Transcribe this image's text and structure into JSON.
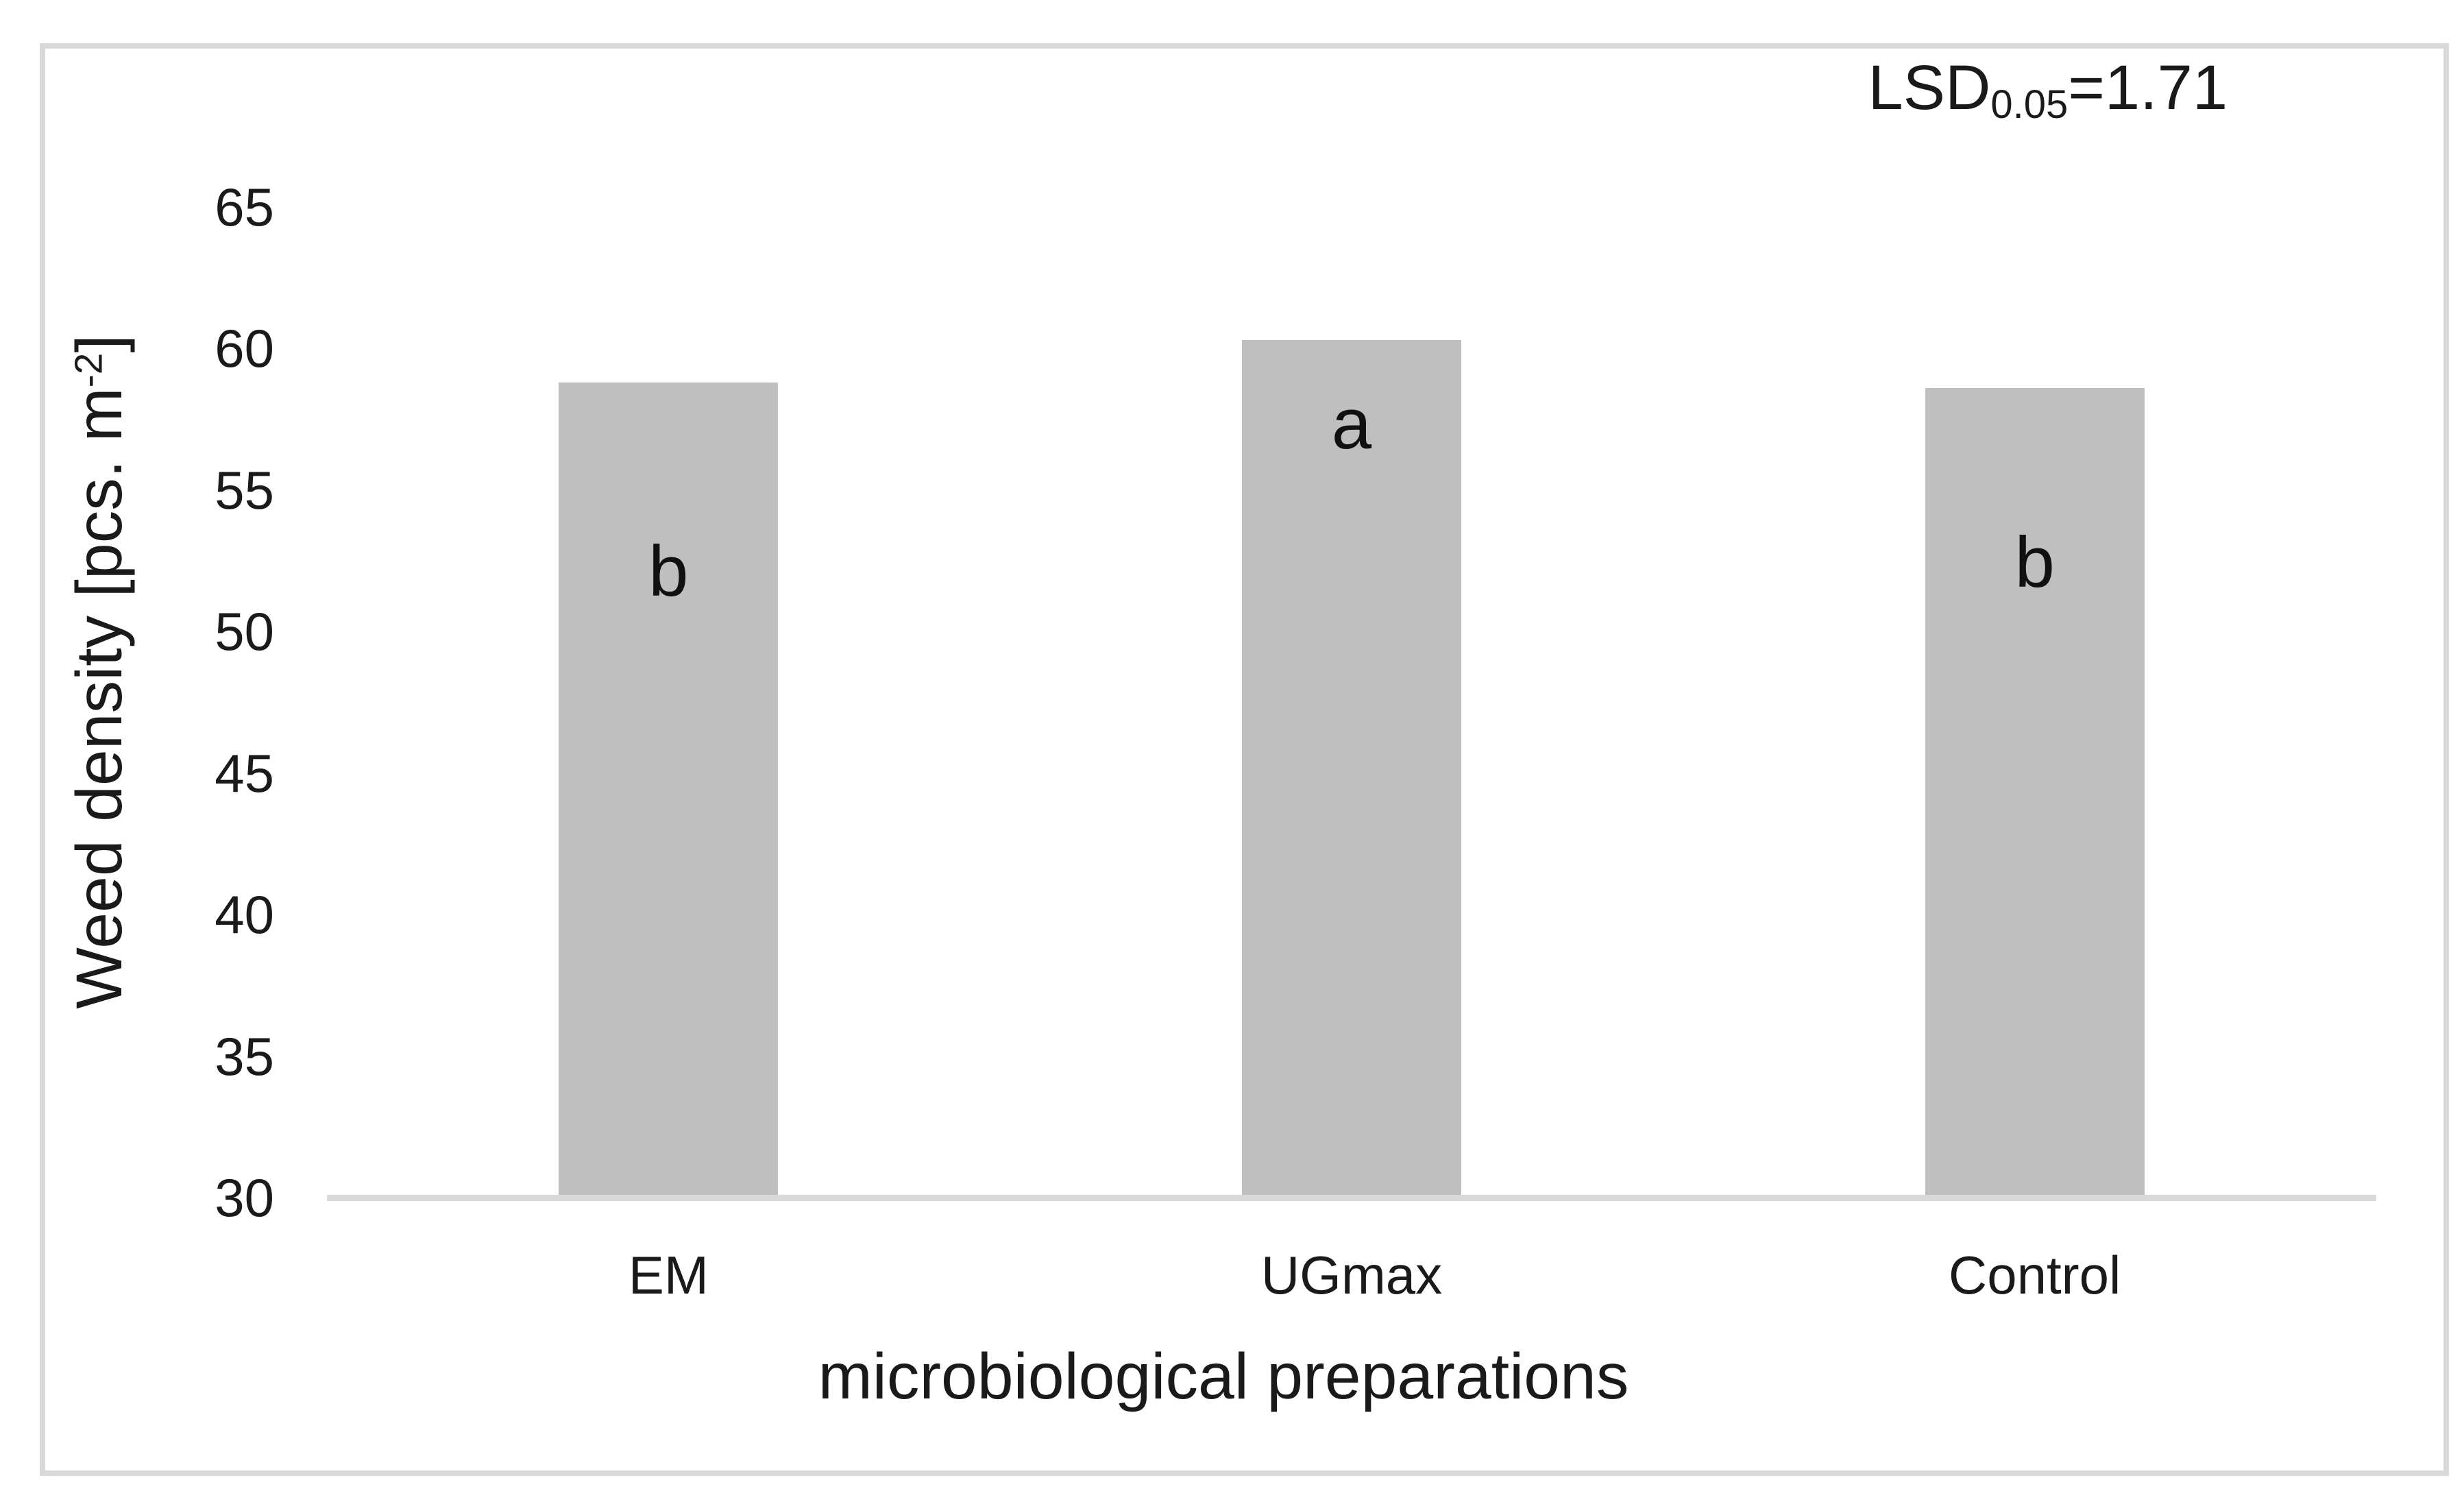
{
  "chart_data": {
    "type": "bar",
    "title": "",
    "categories": [
      "EM",
      "UGmax",
      "Control"
    ],
    "values": [
      58.8,
      60.3,
      58.6
    ],
    "significance_letters": [
      "b",
      "a",
      "b"
    ],
    "xlabel": "microbiological preparations",
    "ylabel": {
      "full": "Weed density [pcs. m-2]",
      "prefix": "Weed density [pcs. m",
      "superscript": "-2",
      "suffix": "]"
    },
    "annotation": {
      "full": "LSD0.05=1.71",
      "prefix": "LSD",
      "subscript": "0.05",
      "rest": "=1.71"
    },
    "yticks": [
      65,
      60,
      55,
      50,
      45,
      40,
      35,
      30
    ],
    "ylim": [
      30,
      65
    ],
    "ytick_step": 5,
    "grid": false,
    "legend": false,
    "colors": {
      "bar_fill": "#BFBFBF",
      "axis_line": "#D9D9D9",
      "frame_border": "#D9D9D9",
      "text": "#1A1A1A",
      "background": "#FFFFFF"
    }
  }
}
